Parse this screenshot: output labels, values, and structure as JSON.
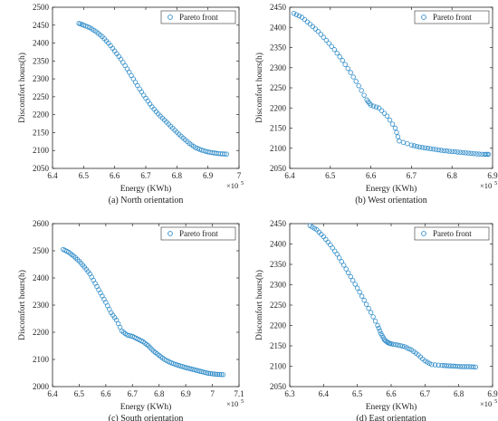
{
  "colors": {
    "marker": "#2f8cc9",
    "axis": "#262626"
  },
  "chart_data": [
    {
      "type": "scatter",
      "caption": "(a) North orientation",
      "xlabel": "Energy (KWh)",
      "ylabel": "Discomfort hours(h)",
      "x_exponent_label": "×10",
      "x_exponent": "5",
      "xlim": [
        6.4,
        7.0
      ],
      "ylim": [
        2050,
        2500
      ],
      "xticks": [
        "6.4",
        "6.5",
        "6.6",
        "6.7",
        "6.8",
        "6.9",
        "7"
      ],
      "yticks": [
        "2050",
        "2100",
        "2150",
        "2200",
        "2250",
        "2300",
        "2350",
        "2400",
        "2450",
        "2500"
      ],
      "legend": {
        "label": "Pareto front",
        "position": "top-right"
      },
      "series": [
        {
          "name": "Pareto front",
          "x": [
            6.485,
            6.5,
            6.52,
            6.54,
            6.56,
            6.58,
            6.6,
            6.62,
            6.64,
            6.66,
            6.68,
            6.7,
            6.72,
            6.74,
            6.76,
            6.78,
            6.8,
            6.82,
            6.84,
            6.86,
            6.88,
            6.9,
            6.92,
            6.94,
            6.96
          ],
          "y": [
            2455,
            2450,
            2443,
            2432,
            2418,
            2400,
            2378,
            2355,
            2328,
            2300,
            2272,
            2246,
            2222,
            2202,
            2185,
            2168,
            2151,
            2135,
            2120,
            2108,
            2101,
            2096,
            2093,
            2091,
            2090
          ]
        }
      ]
    },
    {
      "type": "scatter",
      "caption": "(b) West orientation",
      "xlabel": "Energy (KWh)",
      "ylabel": "Discomfort hours(h)",
      "x_exponent_label": "×10",
      "x_exponent": "5",
      "xlim": [
        6.4,
        6.9
      ],
      "ylim": [
        2050,
        2450
      ],
      "xticks": [
        "6.4",
        "6.5",
        "6.6",
        "6.7",
        "6.8",
        "6.9"
      ],
      "yticks": [
        "2050",
        "2100",
        "2150",
        "2200",
        "2250",
        "2300",
        "2350",
        "2400",
        "2450"
      ],
      "legend": {
        "label": "Pareto front",
        "position": "top-right"
      },
      "series": [
        {
          "name": "Pareto front",
          "x": [
            6.41,
            6.43,
            6.45,
            6.47,
            6.49,
            6.51,
            6.53,
            6.55,
            6.57,
            6.59,
            6.6,
            6.62,
            6.64,
            6.66,
            6.67,
            6.7,
            6.72,
            6.74,
            6.76,
            6.78,
            6.8,
            6.82,
            6.84,
            6.86,
            6.88,
            6.89
          ],
          "y": [
            2435,
            2425,
            2408,
            2390,
            2368,
            2345,
            2318,
            2288,
            2255,
            2220,
            2207,
            2200,
            2180,
            2150,
            2118,
            2108,
            2103,
            2100,
            2097,
            2094,
            2092,
            2090,
            2088,
            2086,
            2085,
            2085
          ]
        }
      ]
    },
    {
      "type": "scatter",
      "caption": "(c) South orientation",
      "xlabel": "Energy (KWh)",
      "ylabel": "Discomfort hours(h)",
      "x_exponent_label": "×10",
      "x_exponent": "5",
      "xlim": [
        6.4,
        7.1
      ],
      "ylim": [
        2000,
        2600
      ],
      "xticks": [
        "6.4",
        "6.5",
        "6.6",
        "6.7",
        "6.8",
        "6.9",
        "7",
        "7.1"
      ],
      "yticks": [
        "2000",
        "2100",
        "2200",
        "2300",
        "2400",
        "2500",
        "2600"
      ],
      "legend": {
        "label": "Pareto front",
        "position": "top-right"
      },
      "series": [
        {
          "name": "Pareto front",
          "x": [
            6.44,
            6.46,
            6.48,
            6.5,
            6.52,
            6.54,
            6.56,
            6.58,
            6.6,
            6.62,
            6.64,
            6.66,
            6.68,
            6.7,
            6.72,
            6.74,
            6.76,
            6.78,
            6.8,
            6.82,
            6.84,
            6.86,
            6.88,
            6.9,
            6.92,
            6.94,
            6.96,
            6.98,
            7.0,
            7.02,
            7.04
          ],
          "y": [
            2505,
            2495,
            2480,
            2462,
            2440,
            2415,
            2380,
            2345,
            2310,
            2272,
            2245,
            2205,
            2190,
            2185,
            2175,
            2165,
            2150,
            2130,
            2115,
            2100,
            2090,
            2082,
            2076,
            2070,
            2065,
            2060,
            2055,
            2050,
            2047,
            2045,
            2044
          ]
        }
      ]
    },
    {
      "type": "scatter",
      "caption": "(d) East orientation",
      "xlabel": "Energy (KWh)",
      "ylabel": "Discomfort hours(h)",
      "x_exponent_label": "×10",
      "x_exponent": "5",
      "xlim": [
        6.3,
        6.9
      ],
      "ylim": [
        2050,
        2450
      ],
      "xticks": [
        "6.3",
        "6.4",
        "6.5",
        "6.6",
        "6.7",
        "6.8",
        "6.9"
      ],
      "yticks": [
        "2050",
        "2100",
        "2150",
        "2200",
        "2250",
        "2300",
        "2350",
        "2400",
        "2450"
      ],
      "legend": {
        "label": "Pareto front",
        "position": "top-right"
      },
      "series": [
        {
          "name": "Pareto front",
          "x": [
            6.36,
            6.38,
            6.4,
            6.42,
            6.44,
            6.46,
            6.48,
            6.5,
            6.52,
            6.54,
            6.56,
            6.57,
            6.58,
            6.59,
            6.6,
            6.62,
            6.64,
            6.66,
            6.68,
            6.7,
            6.72,
            6.75,
            6.77,
            6.79,
            6.81,
            6.83,
            6.85
          ],
          "y": [
            2445,
            2435,
            2418,
            2398,
            2375,
            2348,
            2320,
            2292,
            2262,
            2232,
            2200,
            2180,
            2165,
            2158,
            2155,
            2152,
            2148,
            2140,
            2128,
            2113,
            2104,
            2102,
            2101,
            2100,
            2099,
            2099,
            2098
          ]
        }
      ]
    }
  ]
}
